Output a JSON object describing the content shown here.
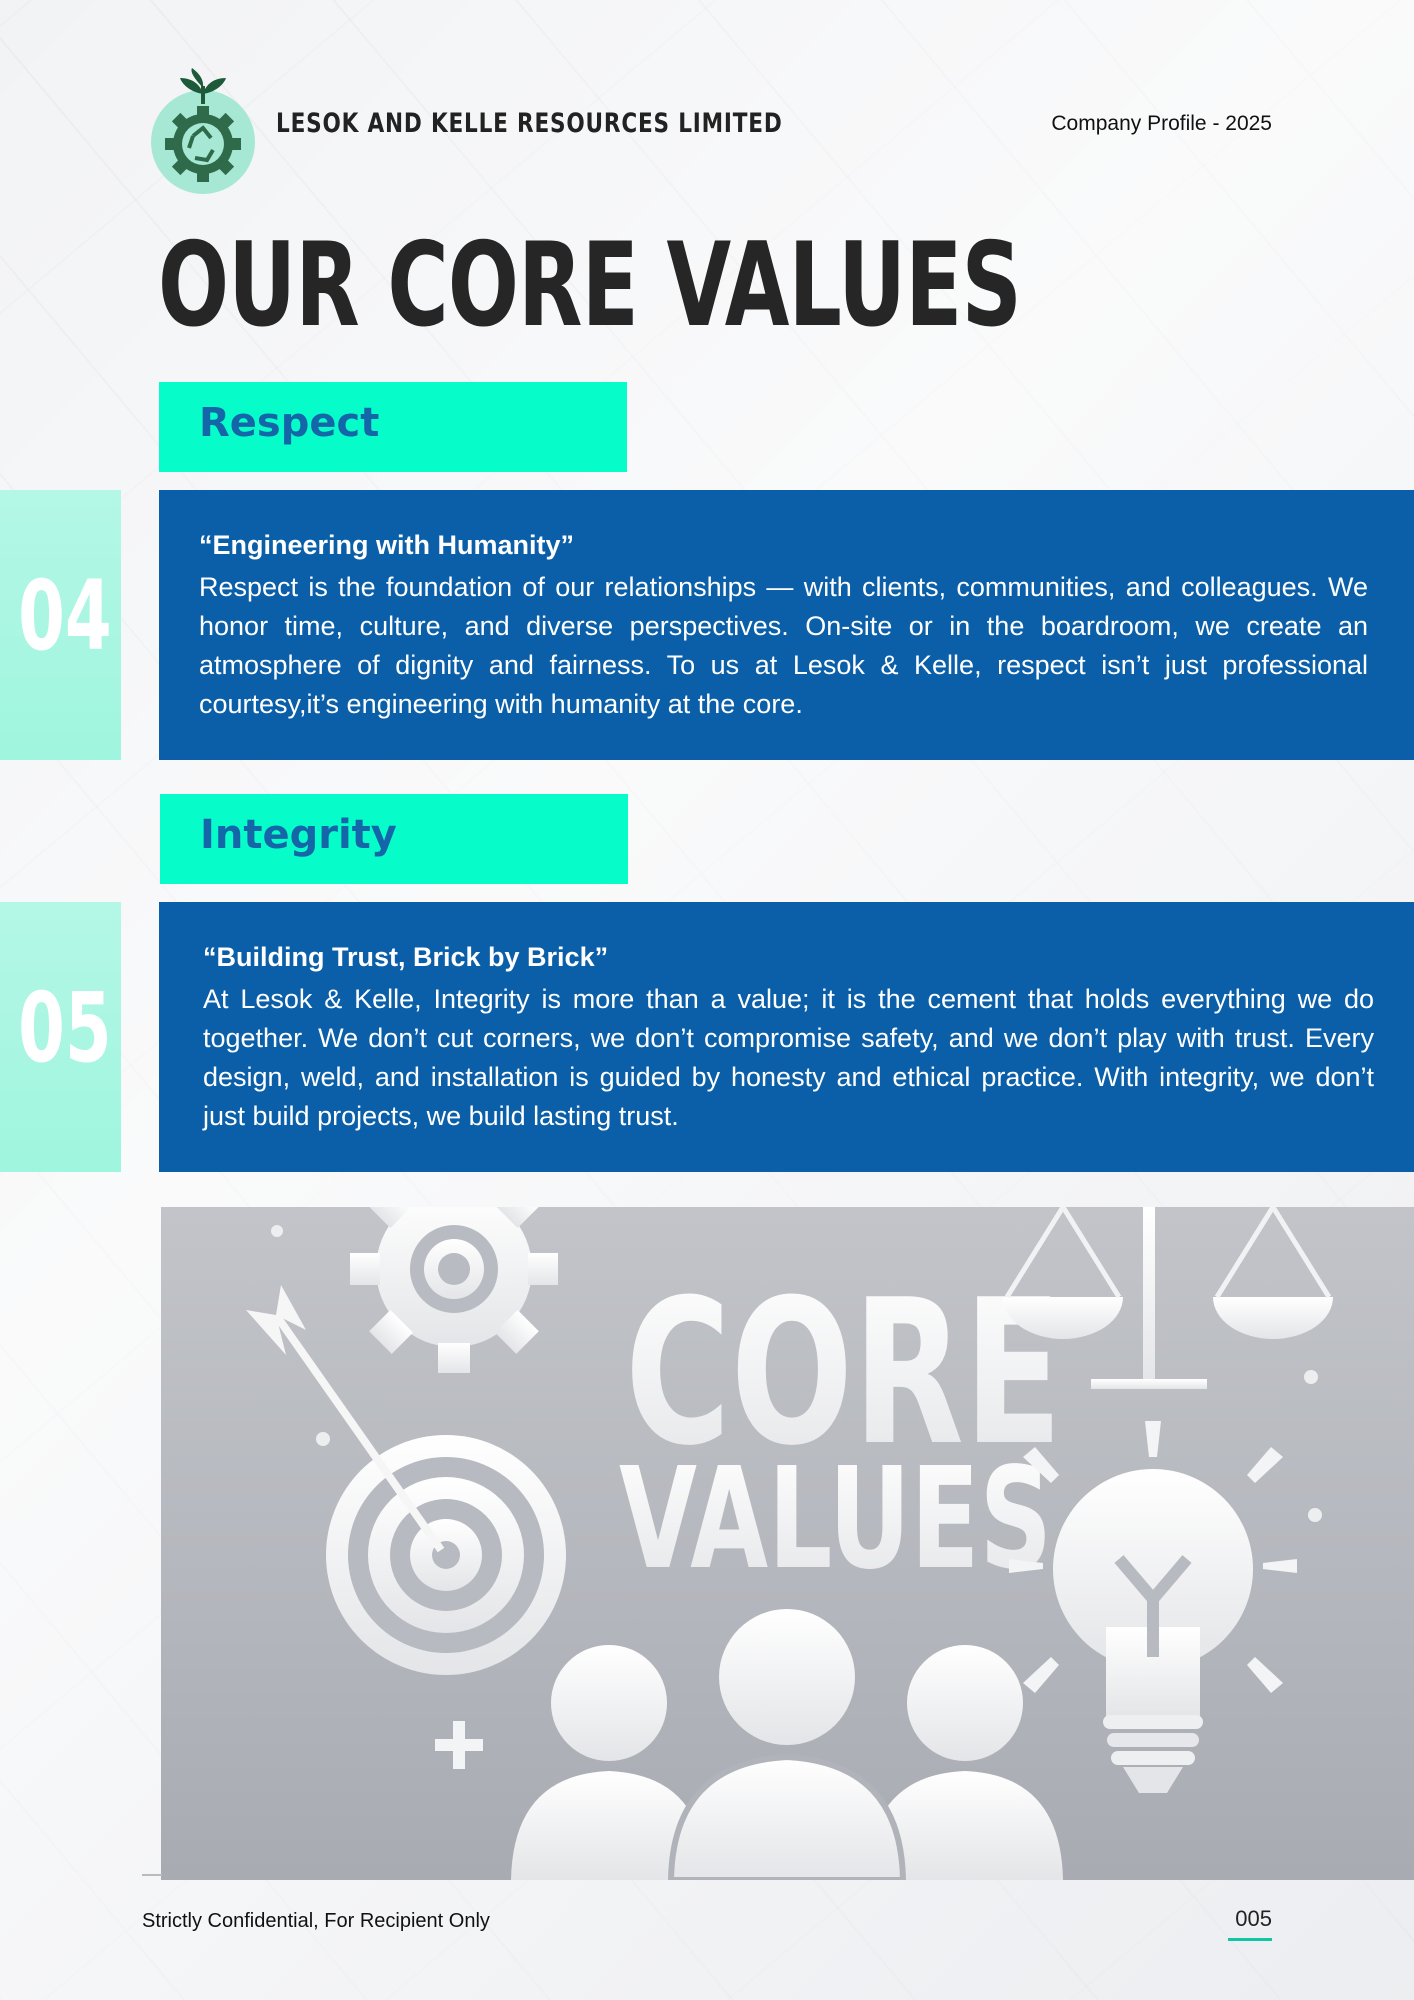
{
  "header": {
    "company_name": "LESOK AND KELLE RESOURCES LIMITED",
    "document_label": "Company Profile - 2025"
  },
  "page_title": "OUR CORE VALUES",
  "values": [
    {
      "number": "04",
      "name": "Respect",
      "quote": "“Engineering with Humanity”",
      "body": "Respect is the foundation of our relationships — with clients, communities, and colleagues. We honor time, culture, and diverse perspectives. On-site or in the boardroom, we create an atmosphere of dignity and fairness. To us at Lesok & Kelle, respect isn’t just professional courtesy,it’s engineering with humanity at the core."
    },
    {
      "number": "05",
      "name": "Integrity",
      "quote": " “Building Trust, Brick by Brick”",
      "body": " At Lesok & Kelle, Integrity is more than a value; it is the cement that holds everything we do together. We don’t cut corners, we don’t compromise safety, and we don’t play with trust. Every design, weld, and installation is guided by honesty and ethical practice. With integrity, we don’t just build projects, we build lasting trust."
    }
  ],
  "image": {
    "line1": "CORE",
    "line2": "VALUES",
    "icons": [
      "gear-icon",
      "target-arrow-icon",
      "scales-icon",
      "lightbulb-icon",
      "people-icon",
      "plus-icon"
    ]
  },
  "footer": {
    "confidential": "Strictly Confidential, For Recipient Only",
    "page_number": "005"
  },
  "colors": {
    "accent_teal": "#06fdc9",
    "panel_blue": "#0a5fa8",
    "tag_text_blue": "#1565a9",
    "number_box": "#b4f7e6"
  }
}
